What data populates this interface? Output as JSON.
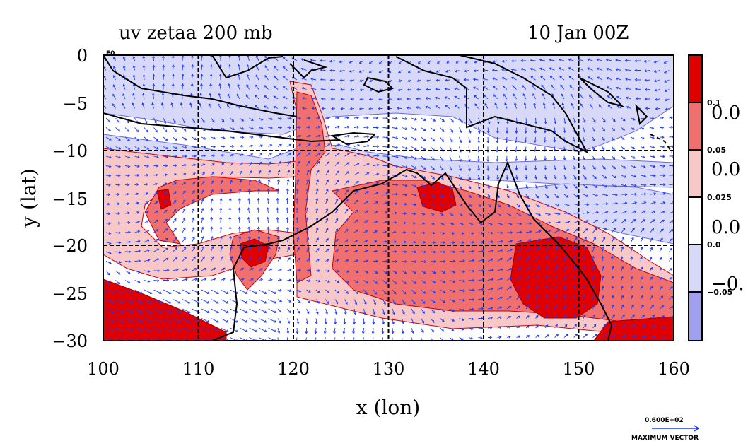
{
  "title_left": "uv zetaa 200 mb",
  "title_right": "10 Jan 00Z",
  "corner_label": "E0",
  "axes": {
    "xlabel": "x (lon)",
    "ylabel": "y (lat)",
    "xlim": [
      100,
      160
    ],
    "ylim": [
      -30,
      0
    ],
    "x_ticks": [
      "100",
      "110",
      "120",
      "130",
      "140",
      "150",
      "160"
    ],
    "y_ticks": [
      "0",
      "−5",
      "−10",
      "−15",
      "−20",
      "−25",
      "−30"
    ]
  },
  "colorbar": {
    "colors": [
      "#e00000",
      "#f07070",
      "#f8c8c8",
      "#ffffff",
      "#d8d8f8",
      "#a0a0ee"
    ],
    "small_labels": [
      "0.1",
      "0.05",
      "0.025",
      "0.0",
      "−0.05"
    ],
    "big_labels": [
      "0.0",
      "0.0",
      "0.0",
      "−0."
    ]
  },
  "vector_key": {
    "value": "0.600E+02",
    "label": "MAXIMUM VECTOR"
  },
  "colors": {
    "land_coast": "#000000",
    "vectors": "#1a3cff",
    "grid": "#000000",
    "contour": "#d00000"
  }
}
